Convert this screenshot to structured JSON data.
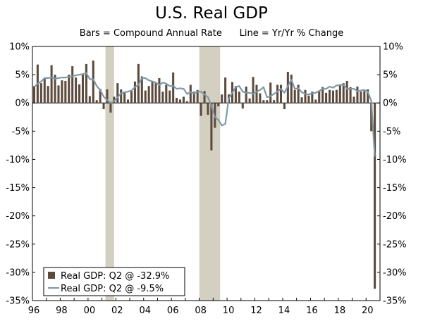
{
  "chart_data": {
    "type": "bar",
    "title": "U.S. Real GDP",
    "subtitle": "Bars = Compound Annual Rate      Line = Yr/Yr % Change",
    "ylim": [
      -35,
      10
    ],
    "ytick_values": [
      10,
      5,
      0,
      -5,
      -10,
      -15,
      -20,
      -25,
      -30,
      -35
    ],
    "ytick_labels": [
      "10%",
      "5%",
      "0%",
      "-5%",
      "-10%",
      "-15%",
      "-20%",
      "-25%",
      "-30%",
      "-35%"
    ],
    "x_range": [
      1996,
      2021
    ],
    "xtick_values": [
      1996,
      1998,
      2000,
      2002,
      2004,
      2006,
      2008,
      2010,
      2012,
      2014,
      2016,
      2018,
      2020
    ],
    "xtick_labels": [
      "96",
      "98",
      "00",
      "02",
      "04",
      "06",
      "08",
      "10",
      "12",
      "14",
      "16",
      "18",
      "20"
    ],
    "recessions": [
      [
        2001.25,
        2001.875
      ],
      [
        2008.0,
        2009.5
      ]
    ],
    "colors": {
      "bars": "#5c4a3d",
      "line": "#7f98a8",
      "recession": "#d4d0c1"
    },
    "series": [
      {
        "name": "Real GDP: Q2 @ -32.9%",
        "kind": "bar",
        "start": 1996.0,
        "step": 0.25,
        "values": [
          3.0,
          6.8,
          3.5,
          4.4,
          3.0,
          6.7,
          5.0,
          3.1,
          4.0,
          3.9,
          5.0,
          6.5,
          4.5,
          3.3,
          5.2,
          6.9,
          1.2,
          7.5,
          0.5,
          2.5,
          -1.1,
          2.4,
          -1.7,
          1.1,
          3.5,
          2.4,
          1.8,
          0.6,
          2.1,
          3.8,
          6.9,
          4.7,
          2.2,
          3.0,
          3.7,
          3.5,
          4.4,
          2.0,
          3.2,
          2.2,
          5.4,
          0.9,
          0.6,
          1.1,
          0.3,
          3.2,
          2.0,
          2.3,
          -2.3,
          2.1,
          -2.1,
          -8.4,
          -4.4,
          -0.6,
          1.5,
          4.5,
          1.5,
          3.7,
          3.0,
          2.0,
          -1.0,
          2.9,
          0.8,
          4.6,
          3.2,
          1.7,
          0.5,
          0.5,
          3.6,
          0.5,
          3.2,
          3.2,
          -1.1,
          5.5,
          5.0,
          2.3,
          3.2,
          1.0,
          2.3,
          1.3,
          2.0,
          0.6,
          2.2,
          2.8,
          1.8,
          2.3,
          2.2,
          2.3,
          3.2,
          3.5,
          3.9,
          2.8,
          1.1,
          2.9,
          2.0,
          2.1,
          2.4,
          -5.0,
          -32.9
        ]
      },
      {
        "name": "Real GDP: Q2 @ -9.5%",
        "kind": "line",
        "start": 1996.0,
        "step": 0.25,
        "values": [
          2.8,
          3.4,
          3.8,
          4.4,
          4.4,
          4.5,
          4.3,
          4.4,
          4.5,
          4.5,
          4.6,
          4.7,
          4.9,
          5.0,
          5.1,
          5.3,
          4.2,
          4.2,
          3.0,
          2.3,
          1.1,
          0.5,
          0.0,
          0.3,
          1.0,
          1.7,
          1.9,
          2.0,
          2.2,
          2.8,
          3.2,
          4.4,
          4.4,
          4.0,
          3.8,
          3.6,
          3.2,
          3.6,
          3.4,
          3.0,
          3.0,
          2.5,
          2.6,
          2.5,
          1.6,
          1.9,
          1.7,
          2.0,
          2.0,
          1.5,
          1.0,
          -0.5,
          -2.5,
          -3.0,
          -4.0,
          -3.7,
          0.8,
          1.8,
          2.8,
          3.0,
          2.0,
          1.8,
          1.8,
          1.6,
          2.0,
          2.3,
          2.8,
          1.0,
          1.2,
          1.6,
          2.0,
          2.5,
          1.8,
          3.0,
          4.1,
          2.5,
          2.6,
          1.9,
          1.6,
          1.5,
          1.7,
          1.8,
          2.1,
          2.5,
          2.5,
          2.9,
          2.7,
          3.1,
          3.2,
          3.2,
          2.5,
          2.5,
          2.5,
          2.1,
          2.2,
          2.3,
          2.0,
          0.3,
          -9.5
        ]
      }
    ],
    "legend": [
      "Real GDP: Q2 @ -32.9%",
      "Real GDP: Q2 @ -9.5%"
    ],
    "legend_position": "bottom-left"
  }
}
